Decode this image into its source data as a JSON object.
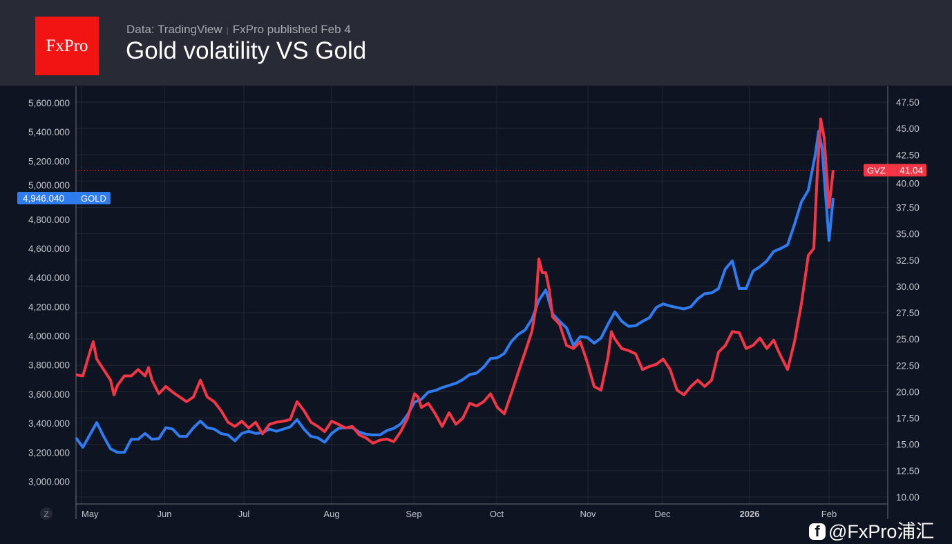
{
  "header": {
    "logo": "FxPro",
    "source": "Data: TradingView",
    "publisher": "FxPro published Feb 4",
    "title": "Gold volatility VS Gold"
  },
  "watermark": "@FxPro浦汇",
  "colors": {
    "gold": "#2f7bf0",
    "gvz": "#f23645"
  },
  "chart_data": {
    "type": "line",
    "title": "Gold volatility VS Gold",
    "left_axis": {
      "ticks": [
        "5,600.000",
        "5,400.000",
        "5,200.000",
        "5,000.000",
        "4,800.000",
        "4,600.000",
        "4,400.000",
        "4,200.000",
        "4,000.000",
        "3,800.000",
        "3,600.000",
        "3,400.000",
        "3,200.000",
        "3,000.000"
      ],
      "tick_values": [
        5600,
        5400,
        5200,
        5000,
        4800,
        4600,
        4400,
        4200,
        4000,
        3800,
        3600,
        3400,
        3200,
        3000
      ]
    },
    "right_axis": {
      "ticks": [
        "47.50",
        "45.00",
        "42.50",
        "40.00",
        "37.50",
        "35.00",
        "32.50",
        "30.00",
        "27.50",
        "25.00",
        "22.50",
        "20.00",
        "17.50",
        "15.00",
        "12.50",
        "10.00"
      ],
      "tick_values": [
        47.5,
        45,
        42.5,
        40,
        37.5,
        35,
        32.5,
        30,
        27.5,
        25,
        22.5,
        20,
        17.5,
        15,
        12.5,
        10
      ]
    },
    "x_axis": {
      "labels": [
        "May",
        "Jun",
        "Jul",
        "Aug",
        "Sep",
        "Oct",
        "Nov",
        "Dec",
        "2026",
        "Feb"
      ],
      "positions": [
        0.8,
        12.8,
        24.3,
        37,
        48.9,
        60.9,
        74.1,
        84.9,
        97.5,
        109
      ],
      "scale_button": "Z"
    },
    "series": [
      {
        "name": "GOLD",
        "axis": "left",
        "last_label": "4,946.040",
        "x": [
          0,
          1,
          2,
          3,
          4,
          5,
          6,
          7,
          8,
          9,
          10,
          11,
          12,
          13,
          14,
          15,
          16,
          17,
          18,
          19,
          20,
          21,
          22,
          23,
          24,
          25,
          26,
          27,
          28,
          29,
          30,
          31,
          32,
          33,
          34,
          35,
          36,
          37,
          38,
          39,
          40,
          41,
          42,
          43,
          44,
          45,
          46,
          47,
          48,
          49,
          50,
          51,
          52,
          53,
          54,
          55,
          56,
          57,
          58,
          59,
          60,
          61,
          62,
          63,
          64,
          65,
          66,
          67,
          68,
          69,
          70,
          71,
          72,
          73,
          74,
          75,
          76,
          77,
          78,
          79,
          80,
          81,
          82,
          83,
          84,
          85,
          86,
          87,
          88,
          89,
          90,
          91,
          92,
          93,
          94,
          95,
          96,
          97,
          98,
          99,
          100,
          101,
          102,
          103,
          104,
          105,
          106,
          107,
          107.5,
          108,
          109,
          109.6
        ],
        "values": [
          3300,
          3235,
          3320,
          3405,
          3310,
          3225,
          3200,
          3200,
          3290,
          3290,
          3330,
          3290,
          3295,
          3370,
          3360,
          3310,
          3310,
          3370,
          3415,
          3370,
          3360,
          3330,
          3320,
          3280,
          3330,
          3345,
          3330,
          3335,
          3360,
          3345,
          3360,
          3375,
          3425,
          3360,
          3310,
          3300,
          3270,
          3330,
          3365,
          3370,
          3370,
          3340,
          3325,
          3320,
          3320,
          3350,
          3365,
          3395,
          3460,
          3545,
          3565,
          3615,
          3625,
          3645,
          3660,
          3675,
          3700,
          3735,
          3745,
          3785,
          3845,
          3850,
          3880,
          3960,
          4010,
          4040,
          4115,
          4245,
          4315,
          4150,
          4100,
          4055,
          3935,
          3995,
          3990,
          3950,
          3985,
          4080,
          4165,
          4100,
          4065,
          4070,
          4100,
          4125,
          4195,
          4220,
          4205,
          4195,
          4185,
          4200,
          4255,
          4290,
          4295,
          4325,
          4460,
          4515,
          4325,
          4325,
          4445,
          4475,
          4515,
          4580,
          4600,
          4625,
          4765,
          4920,
          5000,
          5240,
          5405,
          5285,
          4655,
          4946
        ]
      },
      {
        "name": "GVZ",
        "axis": "right",
        "last_label": "41.04",
        "x": [
          0,
          1,
          2,
          2.5,
          3,
          4,
          5,
          5.5,
          6,
          7,
          8,
          9,
          10,
          10.5,
          11,
          12,
          13,
          14,
          15,
          16,
          17,
          18,
          19,
          20,
          21,
          22,
          23,
          24,
          25,
          26,
          27,
          28,
          29,
          30,
          31,
          32,
          33,
          34,
          35,
          36,
          37,
          38,
          39,
          40,
          41,
          42,
          43,
          44,
          45,
          46,
          47,
          48,
          49,
          49.5,
          50,
          51,
          52,
          53,
          54,
          55,
          56,
          57,
          58,
          59,
          60,
          61,
          62,
          63,
          64,
          65,
          66,
          66.5,
          67,
          67.5,
          68,
          68.5,
          69,
          70,
          71,
          72,
          73,
          74,
          75,
          76,
          77,
          77.5,
          78,
          79,
          80,
          81,
          82,
          83,
          84,
          85,
          86,
          87,
          88,
          89,
          90,
          91,
          92,
          93,
          94,
          95,
          96,
          97,
          98,
          99,
          100,
          101,
          101.5,
          102,
          103,
          104,
          105,
          106,
          106.8,
          107.3,
          107.8,
          108.3,
          109,
          109.6
        ],
        "values": [
          21.6,
          21.5,
          23.75,
          24.75,
          23.1,
          22.1,
          21.1,
          19.7,
          20.6,
          21.5,
          21.5,
          22.1,
          21.5,
          22.3,
          21.1,
          19.8,
          20.5,
          19.95,
          19.5,
          19.05,
          19.5,
          21.1,
          19.5,
          19.05,
          18.2,
          17.1,
          16.7,
          17.2,
          16.55,
          17.1,
          16.0,
          16.9,
          17.1,
          17.2,
          17.35,
          19.05,
          18.2,
          17.1,
          16.7,
          16.2,
          17.2,
          16.9,
          16.55,
          16.7,
          15.9,
          15.6,
          15.1,
          15.4,
          15.5,
          15.25,
          16.2,
          17.5,
          19.8,
          19.5,
          18.5,
          18.9,
          17.9,
          16.7,
          18.0,
          16.9,
          17.5,
          18.9,
          18.65,
          19.05,
          19.8,
          18.5,
          17.9,
          19.8,
          21.8,
          23.75,
          25.75,
          27.7,
          32.6,
          31.3,
          31.3,
          29.7,
          27.1,
          26.4,
          24.4,
          24.1,
          24.75,
          22.8,
          20.5,
          20.15,
          23.25,
          25.7,
          25.0,
          24.1,
          23.9,
          23.6,
          22.1,
          22.4,
          22.6,
          23.1,
          22.1,
          20.15,
          19.7,
          20.5,
          21.1,
          20.5,
          21.1,
          23.75,
          24.4,
          25.7,
          25.6,
          24.1,
          24.4,
          25.1,
          24.1,
          24.9,
          24.1,
          23.4,
          22.1,
          24.75,
          28.35,
          32.95,
          33.6,
          40.8,
          45.9,
          44.1,
          37.5,
          41.04
        ]
      }
    ]
  }
}
